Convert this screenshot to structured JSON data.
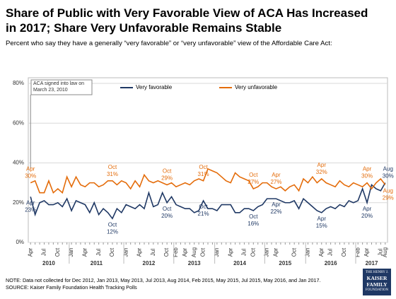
{
  "chart_data": {
    "type": "line",
    "title": "Share of Public with Very Favorable View of ACA Has Increased in 2017; Share Very Unfavorable Remains Stable",
    "subtitle": "Percent who say they have a generally “very favorable” or “very unfavorable” view of the Affordable Care Act:",
    "annotation": "ACA signed into law on March 23, 2010",
    "notes": [
      "NOTE: Data not collected for Dec 2012, Jan 2013, May 2013, Jul 2013, Aug 2014, Feb 2015, May 2015, Jul 2015, May 2016, and Jan 2017.",
      "SOURCE: Kaiser Family Foundation Health Tracking Polls"
    ],
    "logo": [
      "THE HENRY J.",
      "KAISER",
      "FAMILY",
      "FOUNDATION"
    ],
    "categories": [
      "Apr",
      null,
      null,
      "Jul",
      null,
      null,
      "Oct",
      null,
      null,
      "Jan",
      null,
      null,
      "Apr",
      null,
      null,
      "Jul",
      null,
      null,
      "Oct",
      null,
      null,
      "Jan",
      null,
      null,
      "Apr",
      null,
      null,
      "Jul",
      null,
      null,
      "Oct",
      null,
      "Feb",
      null,
      "Apr",
      null,
      "Aug",
      null,
      "Oct",
      null,
      null,
      "Jan",
      null,
      null,
      "Apr",
      null,
      null,
      "Jul",
      null,
      "Oct",
      null,
      null,
      "Jan",
      null,
      "Apr",
      null,
      null,
      null,
      "Oct",
      null,
      null,
      "Jan",
      null,
      null,
      "Apr",
      null,
      "Jul",
      null,
      null,
      "Oct",
      null,
      null,
      "Feb",
      null,
      "Apr",
      null,
      null,
      "Jul",
      "Aug"
    ],
    "years": [
      "2010",
      "2011",
      "2012",
      "2013",
      "2014",
      "2015",
      "2016",
      "2017"
    ],
    "series": [
      {
        "name": "Very favorable",
        "color": "#1f3864",
        "values": [
          23,
          14,
          20,
          21,
          19,
          19,
          20,
          18,
          22,
          16,
          21,
          20,
          19,
          15,
          20,
          14,
          17,
          15,
          12,
          17,
          15,
          19,
          18,
          17,
          19,
          17,
          25,
          18,
          19,
          25,
          20,
          23,
          19,
          18,
          17,
          17,
          15,
          16,
          21,
          17,
          17,
          16,
          19,
          19,
          19,
          15,
          15,
          17,
          17,
          16,
          18,
          19,
          22,
          22,
          22,
          21,
          20,
          20,
          21,
          17,
          22,
          20,
          18,
          16,
          15,
          17,
          18,
          17,
          19,
          18,
          21,
          20,
          21,
          27,
          20,
          29,
          27,
          26,
          30
        ],
        "value_labels": [
          "23%",
          null,
          null,
          null,
          null,
          null,
          null,
          null,
          null,
          null,
          null,
          null,
          null,
          null,
          null,
          null,
          null,
          null,
          "12%",
          null,
          null,
          null,
          null,
          null,
          null,
          null,
          null,
          null,
          null,
          null,
          "20%",
          null,
          null,
          null,
          null,
          null,
          null,
          null,
          "21%",
          null,
          null,
          null,
          null,
          null,
          null,
          null,
          null,
          null,
          null,
          "16%",
          null,
          null,
          null,
          null,
          "22%",
          null,
          null,
          null,
          null,
          null,
          null,
          null,
          null,
          null,
          "15%",
          null,
          null,
          null,
          null,
          null,
          null,
          null,
          null,
          null,
          "20%",
          null,
          null,
          null,
          "30%"
        ],
        "label_months": [
          "Apr",
          null,
          null,
          null,
          null,
          null,
          null,
          null,
          null,
          null,
          null,
          null,
          null,
          null,
          null,
          null,
          null,
          null,
          "Oct",
          null,
          null,
          null,
          null,
          null,
          null,
          null,
          null,
          null,
          null,
          null,
          "Oct",
          null,
          null,
          null,
          null,
          null,
          null,
          null,
          "Oct",
          null,
          null,
          null,
          null,
          null,
          null,
          null,
          null,
          null,
          null,
          "Oct",
          null,
          null,
          null,
          null,
          "Apr",
          null,
          null,
          null,
          null,
          null,
          null,
          null,
          null,
          null,
          "Apr",
          null,
          null,
          null,
          null,
          null,
          null,
          null,
          null,
          null,
          "Apr",
          null,
          null,
          null,
          "Aug"
        ]
      },
      {
        "name": "Very unfavorable",
        "color": "#e46c0a",
        "values": [
          30,
          31,
          25,
          25,
          31,
          25,
          27,
          25,
          33,
          28,
          33,
          29,
          28,
          30,
          30,
          28,
          29,
          31,
          31,
          29,
          31,
          30,
          27,
          31,
          28,
          34,
          31,
          30,
          31,
          30,
          29,
          30,
          28,
          29,
          30,
          29,
          31,
          32,
          31,
          37,
          36,
          35,
          33,
          31,
          30,
          35,
          33,
          32,
          31,
          27,
          28,
          30,
          30,
          28,
          27,
          28,
          26,
          28,
          29,
          26,
          32,
          30,
          33,
          30,
          32,
          30,
          29,
          28,
          31,
          29,
          28,
          30,
          29,
          28,
          30,
          27,
          30,
          32,
          29
        ],
        "value_labels": [
          "30%",
          null,
          null,
          null,
          null,
          null,
          null,
          null,
          null,
          null,
          null,
          null,
          null,
          null,
          null,
          null,
          null,
          null,
          "31%",
          null,
          null,
          null,
          null,
          null,
          null,
          null,
          null,
          null,
          null,
          null,
          "29%",
          null,
          null,
          null,
          null,
          null,
          null,
          null,
          "31%",
          null,
          null,
          null,
          null,
          null,
          null,
          null,
          null,
          null,
          null,
          "27%",
          null,
          null,
          null,
          null,
          "27%",
          null,
          null,
          null,
          null,
          null,
          null,
          null,
          null,
          null,
          "32%",
          null,
          null,
          null,
          null,
          null,
          null,
          null,
          null,
          null,
          "30%",
          null,
          null,
          null,
          "29%"
        ],
        "label_months": [
          "Apr",
          null,
          null,
          null,
          null,
          null,
          null,
          null,
          null,
          null,
          null,
          null,
          null,
          null,
          null,
          null,
          null,
          null,
          "Oct",
          null,
          null,
          null,
          null,
          null,
          null,
          null,
          null,
          null,
          null,
          null,
          "Oct",
          null,
          null,
          null,
          null,
          null,
          null,
          null,
          "Oct",
          null,
          null,
          null,
          null,
          null,
          null,
          null,
          null,
          null,
          null,
          "Oct",
          null,
          null,
          null,
          null,
          "Apr",
          null,
          null,
          null,
          null,
          null,
          null,
          null,
          null,
          null,
          "Apr",
          null,
          null,
          null,
          null,
          null,
          null,
          null,
          null,
          null,
          "Apr",
          null,
          null,
          null,
          "Aug"
        ]
      }
    ],
    "ylim": [
      0,
      80
    ],
    "yticks": [
      {
        "value": 0,
        "label": "0%"
      },
      {
        "value": 20,
        "label": "20%"
      },
      {
        "value": 40,
        "label": "40%"
      },
      {
        "value": 60,
        "label": "60%"
      },
      {
        "value": 80,
        "label": "80%"
      }
    ],
    "grid": true,
    "legend": "top"
  }
}
